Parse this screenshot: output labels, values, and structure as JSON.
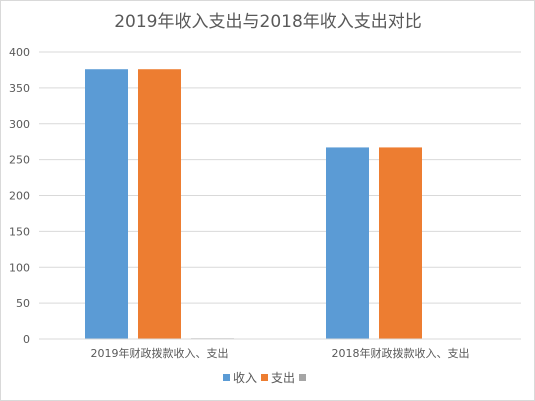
{
  "chart_data": {
    "type": "bar",
    "title": "2019年收入支出与2018年收入支出对比",
    "categories": [
      "2019年财政拨款收入、支出",
      "2018年财政拨款收入、支出"
    ],
    "series": [
      {
        "name": "收入",
        "values": [
          376,
          267
        ],
        "color": "#5b9bd5"
      },
      {
        "name": "支出",
        "values": [
          376,
          267
        ],
        "color": "#ed7d31"
      },
      {
        "name": "",
        "values": [
          1,
          0
        ],
        "color": "#a5a5a5"
      }
    ],
    "ylim": [
      0,
      400
    ],
    "yticks": [
      0,
      50,
      100,
      150,
      200,
      250,
      300,
      350,
      400
    ],
    "grid": true,
    "legend_position": "bottom"
  }
}
